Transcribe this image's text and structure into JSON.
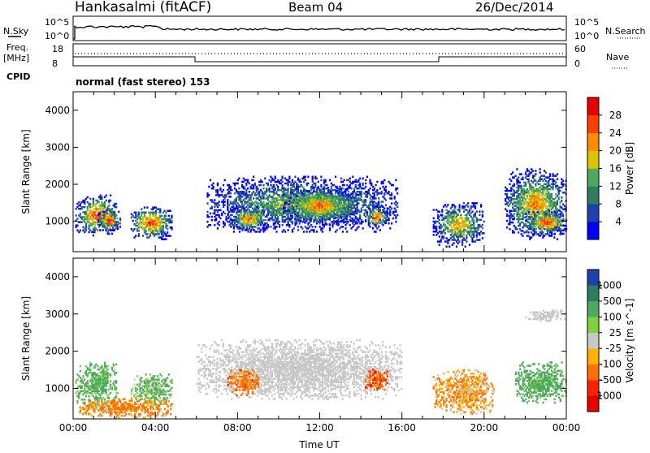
{
  "header": {
    "station": "Hankasalmi (fitACF)",
    "beam": "Beam 04",
    "date": "26/Dec/2014"
  },
  "noise_panel": {
    "left_label": "N.Sky",
    "right_label": "N.Search",
    "tick_top": "10^5",
    "tick_bottom": "10^0"
  },
  "freq_panel": {
    "left_label_1": "Freq.",
    "left_label_2": "[MHz]",
    "left_tick_top": "18",
    "left_tick_bottom": "8",
    "right_label": "Nave",
    "right_tick_top": "60",
    "right_tick_bottom": "0"
  },
  "cpid": {
    "label": "CPID",
    "value": "normal (fast stereo) 153"
  },
  "chart_data": [
    {
      "type": "heatmap",
      "name": "power",
      "ylabel": "Slant Range [km]",
      "ylim": [
        180,
        4500
      ],
      "xlim": [
        0,
        24
      ],
      "y_ticks": [
        "1000",
        "2000",
        "3000",
        "4000"
      ],
      "y_tick_values": [
        1000,
        2000,
        3000,
        4000
      ],
      "colorbar": {
        "label": "Power [dB]",
        "ticks": [
          "4",
          "8",
          "12",
          "16",
          "20",
          "24",
          "28"
        ],
        "tick_values": [
          4,
          8,
          12,
          16,
          20,
          24,
          28
        ],
        "range": [
          0,
          32
        ],
        "colors": [
          "#0000ff",
          "#2040b0",
          "#2e7d5e",
          "#4daa60",
          "#d8c400",
          "#ff8c00",
          "#ff4000",
          "#e60000"
        ]
      },
      "regions": [
        {
          "t": [
            0.1,
            2.2
          ],
          "r": [
            600,
            1700
          ],
          "peak": 28
        },
        {
          "t": [
            1.2,
            2.3
          ],
          "r": [
            700,
            1300
          ],
          "peak": 30
        },
        {
          "t": [
            2.8,
            4.8
          ],
          "r": [
            500,
            1400
          ],
          "peak": 29
        },
        {
          "t": [
            6.5,
            15.8
          ],
          "r": [
            700,
            2200
          ],
          "peak": 18
        },
        {
          "t": [
            7.5,
            9.5
          ],
          "r": [
            700,
            1400
          ],
          "peak": 24
        },
        {
          "t": [
            10.2,
            13.8
          ],
          "r": [
            900,
            1900
          ],
          "peak": 26
        },
        {
          "t": [
            14.2,
            15.3
          ],
          "r": [
            800,
            1400
          ],
          "peak": 28
        },
        {
          "t": [
            17.5,
            20.0
          ],
          "r": [
            300,
            1500
          ],
          "peak": 22
        },
        {
          "t": [
            21.0,
            24.0
          ],
          "r": [
            500,
            2400
          ],
          "peak": 24
        },
        {
          "t": [
            22.0,
            24.0
          ],
          "r": [
            600,
            1300
          ],
          "peak": 29
        }
      ]
    },
    {
      "type": "heatmap",
      "name": "velocity",
      "ylabel": "Slant Range [km]",
      "xlabel": "Time UT",
      "ylim": [
        180,
        4500
      ],
      "xlim": [
        0,
        24
      ],
      "y_ticks": [
        "1000",
        "2000",
        "3000",
        "4000"
      ],
      "y_tick_values": [
        1000,
        2000,
        3000,
        4000
      ],
      "x_ticks": [
        "00:00",
        "04:00",
        "08:00",
        "12:00",
        "16:00",
        "20:00",
        "00:00"
      ],
      "x_tick_values": [
        0,
        4,
        8,
        12,
        16,
        20,
        24
      ],
      "colorbar": {
        "label": "Velocity [m s^-1]",
        "ticks": [
          "1000",
          "500",
          "100",
          "25",
          "-25",
          "-100",
          "-500",
          "-1000"
        ],
        "colors": [
          "#2040b0",
          "#2e7d5e",
          "#4daa60",
          "#80d040",
          "#c8c8c8",
          "#ffb000",
          "#ff7000",
          "#ff2000",
          "#e60000"
        ]
      },
      "regions": [
        {
          "t": [
            0.1,
            2.2
          ],
          "r": [
            500,
            1700
          ],
          "v": 100
        },
        {
          "t": [
            2.8,
            4.8
          ],
          "r": [
            500,
            1400
          ],
          "v": 60
        },
        {
          "t": [
            0.3,
            4.8
          ],
          "r": [
            200,
            700
          ],
          "v": -100
        },
        {
          "t": [
            6.0,
            16.0
          ],
          "r": [
            700,
            2300
          ],
          "v": 0
        },
        {
          "t": [
            7.5,
            9.0
          ],
          "r": [
            800,
            1500
          ],
          "v": -150
        },
        {
          "t": [
            14.2,
            15.3
          ],
          "r": [
            900,
            1500
          ],
          "v": -200
        },
        {
          "t": [
            17.5,
            20.5
          ],
          "r": [
            300,
            1500
          ],
          "v": -50
        },
        {
          "t": [
            21.5,
            24.0
          ],
          "r": [
            600,
            1700
          ],
          "v": 120
        },
        {
          "t": [
            22.0,
            24.0
          ],
          "r": [
            2800,
            3100
          ],
          "v": 0
        }
      ]
    }
  ]
}
